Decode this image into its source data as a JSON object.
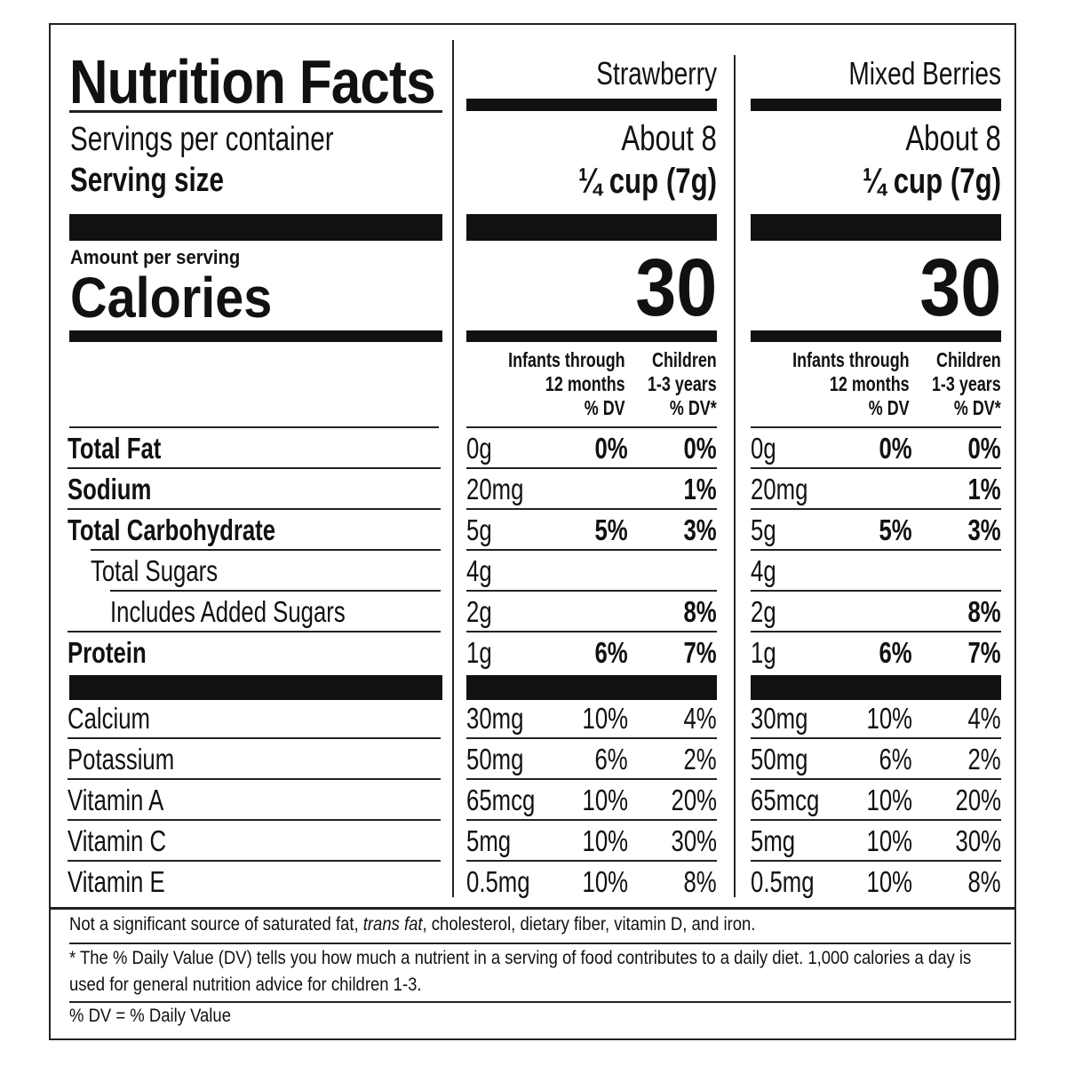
{
  "title": "Nutrition Facts",
  "servings_label": "Servings per container",
  "serving_size_label": "Serving size",
  "amount_per_serving": "Amount per serving",
  "calories_label": "Calories",
  "columns": [
    {
      "name": "Strawberry",
      "servings": "About 8",
      "serving_size": "¼ cup (7g)",
      "calories": "30",
      "dv_header_infants": "Infants through\n12 months\n% DV",
      "dv_header_children": "Children\n1-3 years\n% DV*"
    },
    {
      "name": "Mixed Berries",
      "servings": "About 8",
      "serving_size": "¼ cup (7g)",
      "calories": "30",
      "dv_header_infants": "Infants through\n12 months\n% DV",
      "dv_header_children": "Children\n1-3 years\n% DV*"
    }
  ],
  "nutrients": [
    {
      "name": "Total Fat",
      "amount": "0g",
      "infants": "0%",
      "children": "0%"
    },
    {
      "name": "Sodium",
      "amount": "20mg",
      "infants": "",
      "children": "1%"
    },
    {
      "name": "Total Carbohydrate",
      "amount": "5g",
      "infants": "5%",
      "children": "3%"
    },
    {
      "name": "Total Sugars",
      "amount": "4g",
      "infants": "",
      "children": ""
    },
    {
      "name": "Includes Added Sugars",
      "amount": "2g",
      "infants": "",
      "children": "8%"
    },
    {
      "name": "Protein",
      "amount": "1g",
      "infants": "6%",
      "children": "7%"
    }
  ],
  "vitamins": [
    {
      "name": "Calcium",
      "amount": "30mg",
      "infants": "10%",
      "children": "4%"
    },
    {
      "name": "Potassium",
      "amount": "50mg",
      "infants": "6%",
      "children": "2%"
    },
    {
      "name": "Vitamin A",
      "amount": "65mcg",
      "infants": "10%",
      "children": "20%"
    },
    {
      "name": "Vitamin C",
      "amount": "5mg",
      "infants": "10%",
      "children": "30%"
    },
    {
      "name": "Vitamin E",
      "amount": "0.5mg",
      "infants": "10%",
      "children": "8%"
    }
  ],
  "footnote_1_pre": "Not a significant source of saturated fat, ",
  "footnote_1_italic": "trans fat",
  "footnote_1_post": ", cholesterol, dietary fiber, vitamin D, and iron.",
  "footnote_2": "* The % Daily Value (DV) tells you how much a nutrient in a serving of food contributes to a daily diet. 1,000 calories a day is used for general nutrition advice for children 1-3.",
  "footnote_3": "% DV = % Daily Value"
}
